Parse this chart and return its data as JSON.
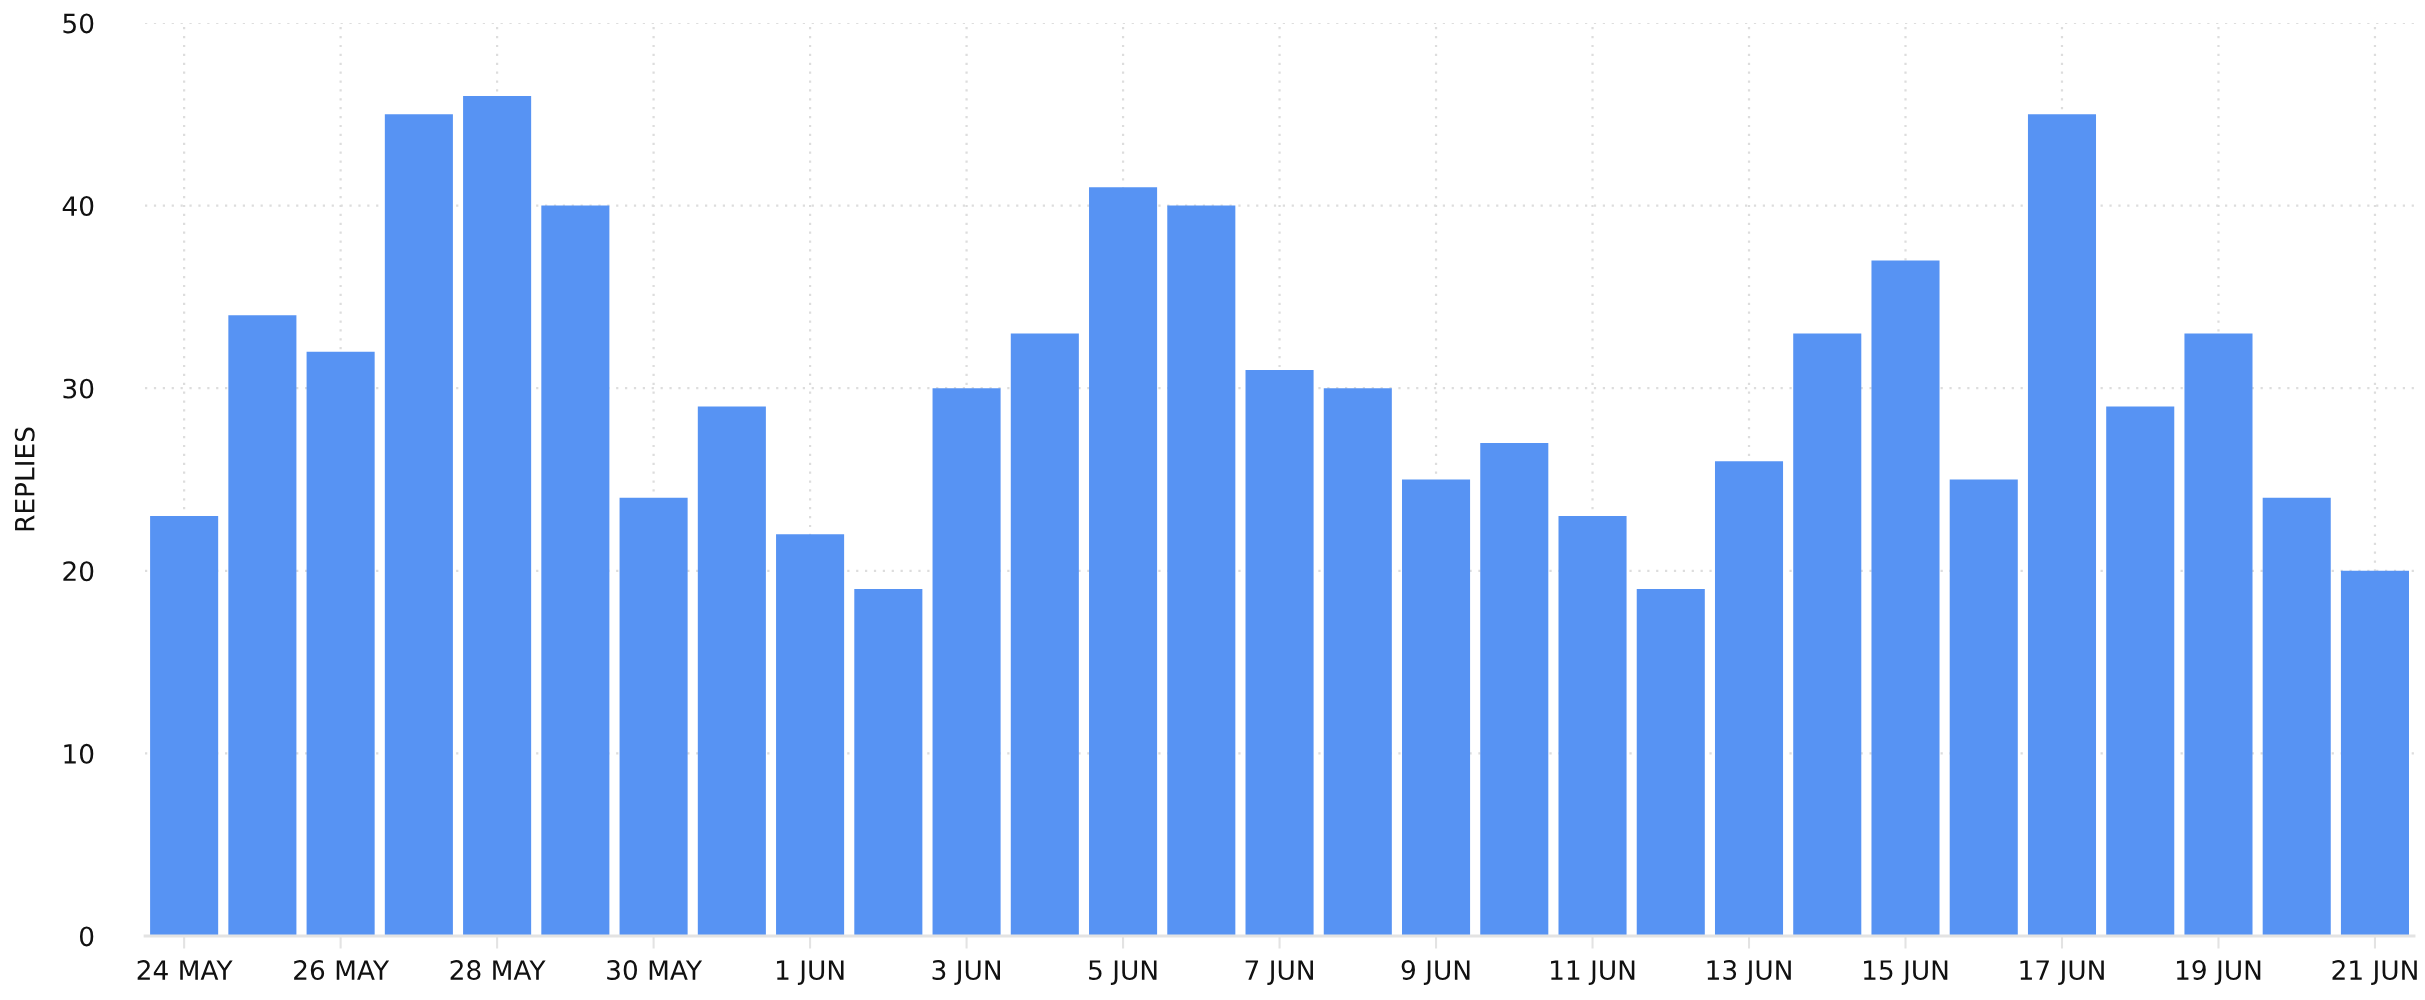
{
  "chart_data": {
    "type": "bar",
    "ylabel": "REPLIES",
    "categories": [
      "24 MAY",
      null,
      "26 MAY",
      null,
      "28 MAY",
      null,
      "30 MAY",
      null,
      "1 JUN",
      null,
      "3 JUN",
      null,
      "5 JUN",
      null,
      "7 JUN",
      null,
      "9 JUN",
      null,
      "11 JUN",
      null,
      "13 JUN",
      null,
      "15 JUN",
      null,
      "17 JUN",
      null,
      "19 JUN",
      null,
      "21 JUN"
    ],
    "values": [
      23,
      34,
      32,
      45,
      46,
      40,
      24,
      29,
      22,
      19,
      30,
      33,
      41,
      40,
      31,
      30,
      25,
      27,
      23,
      19,
      26,
      33,
      37,
      25,
      45,
      29,
      33,
      24,
      20
    ],
    "color": "#5793f3",
    "ylim": [
      0,
      50
    ],
    "yticks": [
      0,
      10,
      20,
      30,
      40,
      50
    ],
    "grid": true
  }
}
